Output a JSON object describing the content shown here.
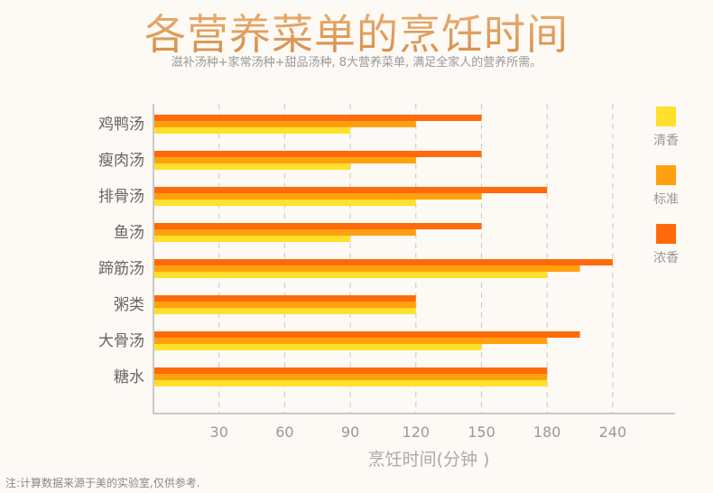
{
  "header": {
    "title": "各营养菜单的烹饪时间",
    "subtitle": "滋补汤种+家常汤种+甜品汤种, 8大营养菜单, 满足全家人的营养所需。"
  },
  "footer": {
    "note": "注:计算数据来源于美的实验室,仅供参考."
  },
  "chart_data": {
    "type": "bar",
    "orientation": "horizontal",
    "title": "各营养菜单的烹饪时间",
    "xlabel": "烹饪时间(分钟 )",
    "ylabel": "",
    "categories": [
      "鸡鸭汤",
      "瘦肉汤",
      "排骨汤",
      "鱼汤",
      "蹄筋汤",
      "粥类",
      "大骨汤",
      "糖水"
    ],
    "x_ticks": [
      30,
      60,
      90,
      120,
      150,
      180,
      240
    ],
    "xlim": [
      0,
      240
    ],
    "grid": "vertical-dashed",
    "legend_position": "right",
    "series": [
      {
        "name": "清香",
        "color": "#ffe02a",
        "values": [
          90,
          90,
          120,
          90,
          180,
          120,
          150,
          180
        ]
      },
      {
        "name": "标准",
        "color": "#ffa10f",
        "values": [
          120,
          120,
          150,
          120,
          210,
          120,
          180,
          180
        ]
      },
      {
        "name": "浓香",
        "color": "#ff6a0a",
        "values": [
          150,
          150,
          180,
          150,
          240,
          120,
          210,
          180
        ]
      }
    ]
  }
}
